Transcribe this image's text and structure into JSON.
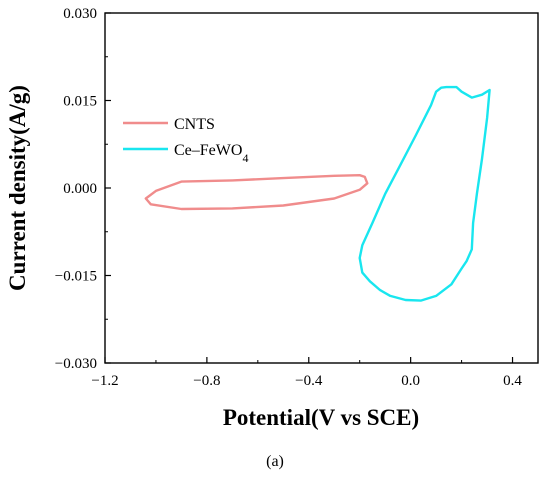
{
  "chart_data": {
    "type": "line",
    "title": "",
    "xlabel": "Potential(V vs SCE)",
    "ylabel": "Current density(A/g)",
    "xlim": [
      -1.2,
      0.5
    ],
    "ylim": [
      -0.03,
      0.03
    ],
    "xticks": [
      -1.2,
      -0.8,
      -0.4,
      0.0,
      0.4
    ],
    "xtick_labels": [
      "−1.2",
      "−0.8",
      "−0.4",
      "0.0",
      "0.4"
    ],
    "yticks": [
      0.03,
      0.015,
      0.0,
      -0.015,
      -0.03
    ],
    "ytick_labels": [
      "0.030",
      "0.015",
      "0.000",
      "−0.015",
      "−0.030"
    ],
    "legend_position": "upper-left",
    "caption": "(a)",
    "series": [
      {
        "name": "CNTS",
        "name_main": "CNTS",
        "name_sub": "",
        "color": "#f08c8c",
        "x": [
          -0.18,
          -0.17,
          -0.2,
          -0.3,
          -0.5,
          -0.7,
          -0.9,
          -1.02,
          -1.04,
          -1.0,
          -0.9,
          -0.7,
          -0.5,
          -0.3,
          -0.2,
          -0.18
        ],
        "y": [
          0.0019,
          0.0008,
          -0.0003,
          -0.0018,
          -0.003,
          -0.0035,
          -0.0036,
          -0.0028,
          -0.0018,
          -0.0005,
          0.0011,
          0.0013,
          0.0017,
          0.0021,
          0.0022,
          0.0019
        ]
      },
      {
        "name": "Ce–FeWO4",
        "name_main": "Ce–FeWO",
        "name_sub": "4",
        "color": "#19e6ef",
        "x": [
          0.31,
          0.3,
          0.28,
          0.26,
          0.245,
          0.24,
          0.22,
          0.2,
          0.16,
          0.1,
          0.04,
          -0.02,
          -0.08,
          -0.12,
          -0.16,
          -0.19,
          -0.2,
          -0.19,
          -0.15,
          -0.1,
          -0.04,
          0.02,
          0.08,
          0.1,
          0.12,
          0.14,
          0.18,
          0.2,
          0.24,
          0.28,
          0.31
        ],
        "y": [
          0.0168,
          0.012,
          0.005,
          -0.001,
          -0.006,
          -0.0105,
          -0.0125,
          -0.0138,
          -0.0165,
          -0.0185,
          -0.0193,
          -0.0192,
          -0.0185,
          -0.0175,
          -0.016,
          -0.0145,
          -0.012,
          -0.0098,
          -0.006,
          -0.001,
          0.004,
          0.009,
          0.0142,
          0.0165,
          0.0172,
          0.0173,
          0.0173,
          0.0165,
          0.0155,
          0.016,
          0.0168
        ]
      }
    ]
  }
}
